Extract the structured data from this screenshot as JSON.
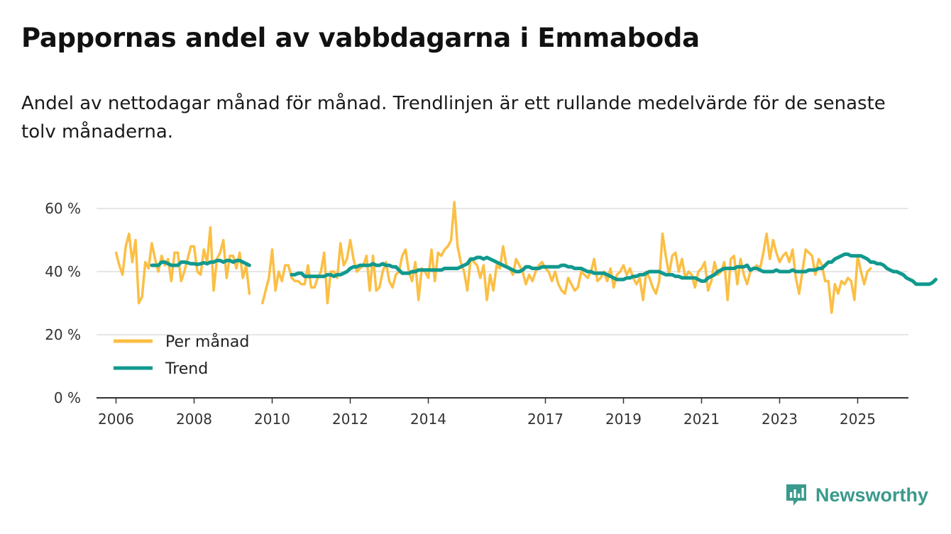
{
  "title": "Pappornas andel av vabbdagarna i Emmaboda",
  "subtitle": "Andel av nettodagar månad för månad. Trendlinjen är ett rullande medelvärde för de senaste tolv månaderna.",
  "brand": {
    "name": "Newsworthy",
    "icon": "newsworthy-logo-icon"
  },
  "colors": {
    "monthly": "#fbbf45",
    "trend": "#11998e",
    "grid": "#dddddd",
    "axis": "#333333",
    "brand": "#3a9a8c"
  },
  "chart_data": {
    "type": "line",
    "title": "Pappornas andel av vabbdagarna i Emmaboda",
    "xlabel": "",
    "ylabel": "",
    "x_range": [
      2005.5,
      2026.3
    ],
    "ylim": [
      0,
      60
    ],
    "y_ticks": [
      {
        "value": 0,
        "label": "0 %"
      },
      {
        "value": 20,
        "label": "20 %"
      },
      {
        "value": 40,
        "label": "40 %"
      },
      {
        "value": 60,
        "label": "60 %"
      }
    ],
    "x_ticks": [
      {
        "value": 2006,
        "label": "2006"
      },
      {
        "value": 2008,
        "label": "2008"
      },
      {
        "value": 2010,
        "label": "2010"
      },
      {
        "value": 2012,
        "label": "2012"
      },
      {
        "value": 2014,
        "label": "2014"
      },
      {
        "value": 2017,
        "label": "2017"
      },
      {
        "value": 2019,
        "label": "2019"
      },
      {
        "value": 2021,
        "label": "2021"
      },
      {
        "value": 2023,
        "label": "2023"
      },
      {
        "value": 2025,
        "label": "2025"
      }
    ],
    "grid": true,
    "legend_position": "bottom-left",
    "legend": [
      {
        "key": "monthly",
        "label": "Per månad"
      },
      {
        "key": "trend",
        "label": "Trend"
      }
    ],
    "series": [
      {
        "name": "Per månad",
        "key": "monthly",
        "segments": [
          {
            "start": 2006.0,
            "step": 0.0833333,
            "values": [
              46,
              42,
              39,
              48,
              52,
              43,
              50,
              30,
              32,
              43,
              41,
              49,
              44,
              40,
              45,
              42,
              44,
              37,
              46,
              46,
              37,
              40,
              44,
              48,
              48,
              40,
              39,
              47,
              43,
              54,
              34,
              44,
              46,
              50,
              38,
              45,
              45,
              41,
              46,
              38,
              42,
              33
            ]
          },
          {
            "start": 2009.75,
            "step": 0.0833333,
            "values": [
              30,
              34,
              38,
              47,
              34,
              40,
              37,
              42,
              42,
              38,
              37,
              37,
              36,
              36,
              42,
              35,
              35,
              38,
              40,
              46,
              30,
              40,
              40,
              38,
              49,
              42,
              44,
              50,
              44,
              40,
              41,
              42,
              45,
              34,
              45,
              34,
              35,
              40,
              43,
              37,
              35,
              39,
              40,
              45,
              47,
              40,
              37,
              43,
              31,
              41,
              40,
              38,
              47,
              37,
              46,
              45,
              47,
              48,
              50,
              62,
              48,
              43,
              40,
              34,
              44,
              43,
              42,
              38,
              42,
              31,
              39,
              34,
              42,
              41,
              48,
              42,
              41,
              39,
              44,
              42,
              40,
              36,
              39,
              37,
              40,
              42,
              43,
              41,
              40,
              37,
              40,
              36,
              34,
              33,
              38,
              36,
              34,
              35,
              40,
              39,
              38,
              40,
              44,
              37,
              38,
              40,
              37,
              41,
              35,
              39,
              40,
              42,
              39,
              41,
              38,
              36,
              38,
              31,
              40,
              38,
              35,
              33,
              37,
              52,
              45,
              39,
              45,
              46,
              40,
              44,
              38,
              40,
              39,
              35,
              40,
              41,
              43,
              34,
              37,
              43,
              39,
              40,
              43,
              31,
              44,
              45,
              36,
              44,
              39,
              36,
              40,
              41,
              42,
              41,
              46,
              52,
              44,
              50,
              46,
              43,
              45,
              46,
              43,
              47,
              38,
              33,
              40,
              47,
              46,
              45,
              39,
              44,
              42,
              37,
              37,
              27,
              36,
              33,
              37,
              36,
              38,
              37,
              31,
              45,
              40,
              36,
              40,
              41
            ]
          }
        ]
      },
      {
        "name": "Trend",
        "key": "trend",
        "segments": [
          {
            "start": 2006.917,
            "step": 0.0833333,
            "values": [
              42,
              42,
              42,
              43,
              43,
              42.5,
              42,
              42,
              42,
              43,
              43,
              42.8,
              42.5,
              42.5,
              42.3,
              42.5,
              42.8,
              42.5,
              43,
              43,
              43.5,
              43.5,
              43,
              43.5,
              43.5,
              43,
              43.5,
              43.5,
              43,
              42.5,
              42
            ]
          },
          {
            "start": 2010.5,
            "step": 0.0833333,
            "values": [
              39,
              39,
              39.5,
              39.5,
              38.5,
              38.5,
              38.5,
              38.5,
              38.5,
              38.5,
              38.5,
              39,
              39,
              38.5,
              39,
              39,
              39.5,
              40,
              41,
              41.5,
              41.5,
              42,
              42,
              42,
              42,
              42.5,
              42,
              42,
              42.5,
              42,
              42,
              41.5,
              41.5,
              40.5,
              39.5,
              39.5,
              39.5,
              40,
              40,
              40.5,
              40.5,
              40.5,
              40.5,
              40.5,
              40.5,
              40.5,
              40.5,
              41,
              41,
              41,
              41,
              41,
              41.5,
              42,
              42.5,
              44,
              44,
              44.5,
              44.5,
              44,
              44.5,
              44,
              43.5,
              43,
              42.5,
              42,
              41.5,
              41,
              40.5,
              40,
              40,
              40.5,
              41.5,
              41.5,
              41,
              41,
              41,
              41.5,
              41.5,
              41.5,
              41.5,
              41.5,
              41.5,
              42,
              42,
              41.5,
              41.5,
              41,
              41,
              41,
              40.5,
              40,
              40,
              39.5,
              39.5,
              39.5,
              39.5,
              39,
              38.5,
              38,
              37.5,
              37.5,
              37.5,
              38,
              38,
              38.5,
              38.5,
              39,
              39,
              39.5,
              40,
              40,
              40,
              40,
              39.5,
              39,
              39,
              39,
              38.5,
              38.5,
              38,
              38,
              38,
              38,
              38,
              37.5,
              37,
              37,
              38,
              38.5,
              39,
              40,
              40.5,
              41,
              41,
              41,
              41,
              41.5,
              41.5,
              41.5,
              42,
              40.5,
              41,
              41,
              40.5,
              40,
              40,
              40,
              40,
              40.5,
              40,
              40,
              40,
              40,
              40.5,
              40,
              40,
              40,
              40,
              40.5,
              40.5,
              40.5,
              41,
              41,
              42,
              43,
              43,
              44,
              44.5,
              45,
              45.5,
              45.5,
              45,
              45,
              45,
              45,
              44.5,
              44,
              43,
              43,
              42.5,
              42.5,
              42,
              41,
              40.5,
              40,
              40,
              39.5,
              39,
              38,
              37.5,
              37,
              36,
              36,
              36,
              36,
              36,
              36.5,
              37.5
            ]
          }
        ]
      }
    ]
  }
}
